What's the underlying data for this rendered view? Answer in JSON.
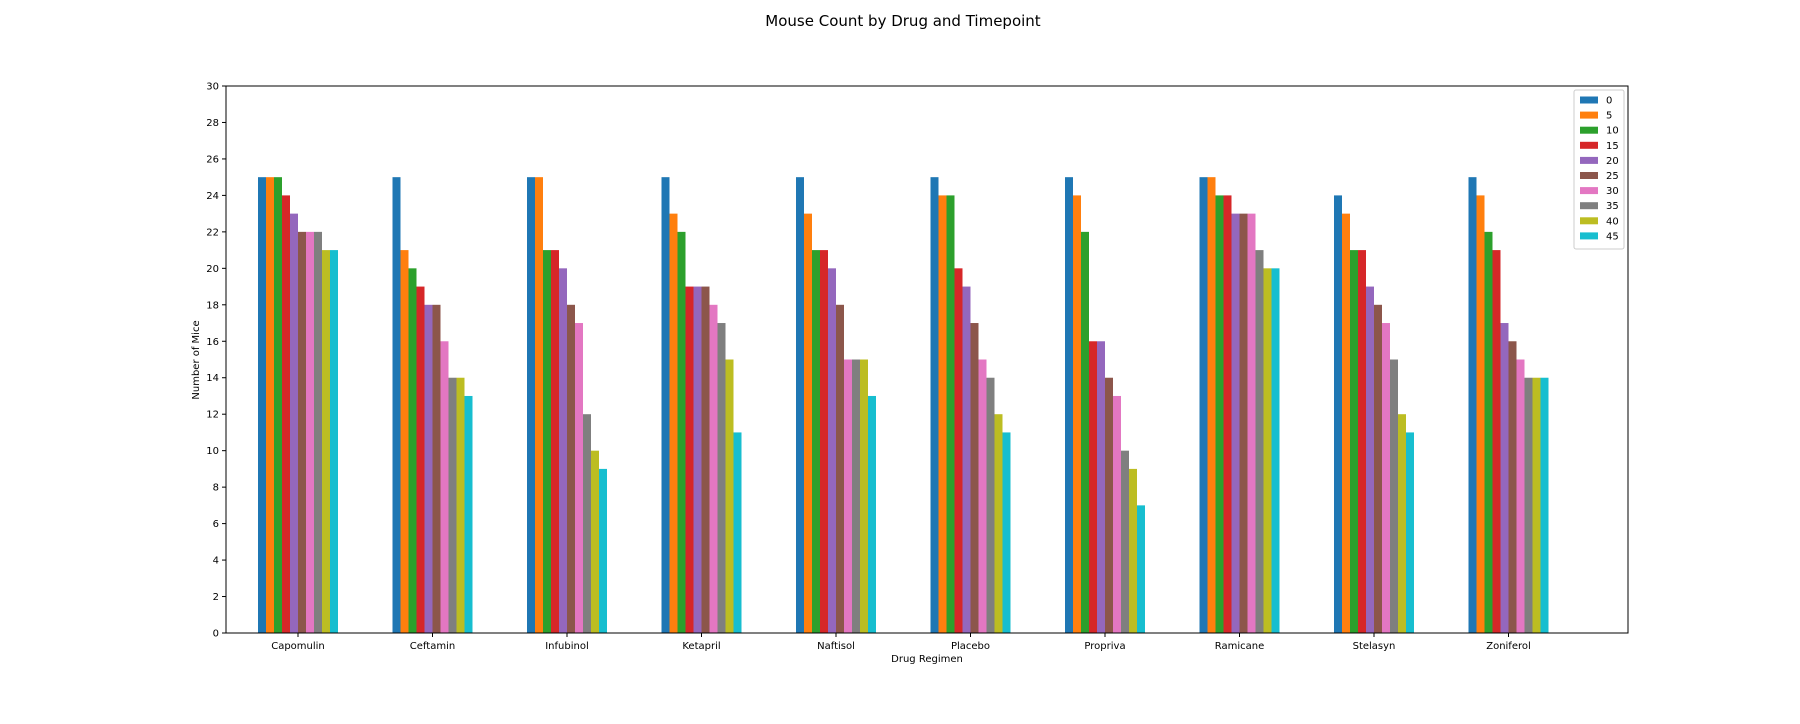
{
  "chart_data": {
    "type": "bar",
    "title": "Mouse Count by Drug and Timepoint",
    "xlabel": "Drug Regimen",
    "ylabel": "Number of Mice",
    "ylim": [
      0,
      30
    ],
    "yticks": [
      0,
      2,
      4,
      6,
      8,
      10,
      12,
      14,
      16,
      18,
      20,
      22,
      24,
      26,
      28,
      30
    ],
    "grid": false,
    "legend_position": "top-right",
    "categories": [
      "Capomulin",
      "Ceftamin",
      "Infubinol",
      "Ketapril",
      "Naftisol",
      "Placebo",
      "Propriva",
      "Ramicane",
      "Stelasyn",
      "Zoniferol"
    ],
    "series": [
      {
        "name": "0",
        "color": "#1f77b4",
        "values": [
          25,
          25,
          25,
          25,
          25,
          25,
          25,
          25,
          24,
          25
        ]
      },
      {
        "name": "5",
        "color": "#ff7f0e",
        "values": [
          25,
          21,
          25,
          23,
          23,
          24,
          24,
          25,
          23,
          24
        ]
      },
      {
        "name": "10",
        "color": "#2ca02c",
        "values": [
          25,
          20,
          21,
          22,
          21,
          24,
          22,
          24,
          21,
          22
        ]
      },
      {
        "name": "15",
        "color": "#d62728",
        "values": [
          24,
          19,
          21,
          19,
          21,
          20,
          16,
          24,
          21,
          21
        ]
      },
      {
        "name": "20",
        "color": "#9467bd",
        "values": [
          23,
          18,
          20,
          19,
          20,
          19,
          16,
          23,
          19,
          17
        ]
      },
      {
        "name": "25",
        "color": "#8c564b",
        "values": [
          22,
          18,
          18,
          19,
          18,
          17,
          14,
          23,
          18,
          16
        ]
      },
      {
        "name": "30",
        "color": "#e377c2",
        "values": [
          22,
          16,
          17,
          18,
          15,
          15,
          13,
          23,
          17,
          15
        ]
      },
      {
        "name": "35",
        "color": "#7f7f7f",
        "values": [
          22,
          14,
          12,
          17,
          15,
          14,
          10,
          21,
          15,
          14
        ]
      },
      {
        "name": "40",
        "color": "#bcbd22",
        "values": [
          21,
          14,
          10,
          15,
          15,
          12,
          9,
          20,
          12,
          14
        ]
      },
      {
        "name": "45",
        "color": "#17becf",
        "values": [
          21,
          13,
          9,
          11,
          13,
          11,
          7,
          20,
          11,
          14
        ]
      }
    ]
  }
}
